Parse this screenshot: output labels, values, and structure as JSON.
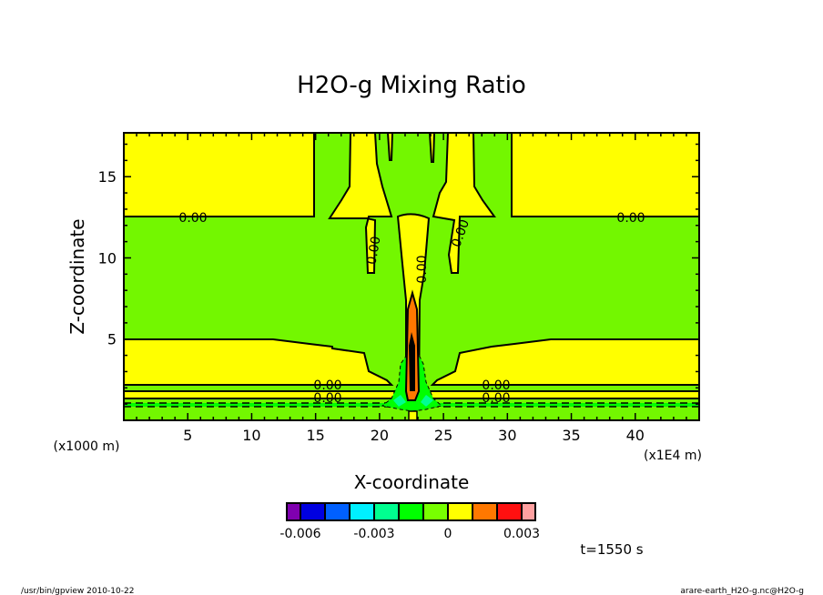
{
  "chart_data": {
    "type": "contour",
    "title": "H2O-g Mixing Ratio",
    "xlabel": "X-coordinate",
    "ylabel": "Z-coordinate",
    "x_units": "(x1E4 m)",
    "y_units": "(x1000 m)",
    "xlim": [
      0,
      45
    ],
    "ylim": [
      0,
      17.7
    ],
    "xticks": [
      5,
      10,
      15,
      20,
      25,
      30,
      35,
      40
    ],
    "yticks": [
      5,
      10,
      15
    ],
    "contour_label": "0.00",
    "colorbar": {
      "colors": [
        "#7f00b0",
        "#0000e0",
        "#0060ff",
        "#00f0ff",
        "#00ff90",
        "#00ff00",
        "#78ff00",
        "#ffff00",
        "#ff7800",
        "#ff1010",
        "#ffa0a0"
      ],
      "tick_labels": [
        "-0.006",
        "-0.003",
        "0",
        "0.003"
      ],
      "boundaries": [
        -0.006,
        -0.005,
        -0.004,
        -0.003,
        -0.002,
        -0.001,
        0,
        0.001,
        0.002,
        0.003
      ]
    },
    "time_label": "t=1550 s"
  },
  "footer": {
    "left": "/usr/bin/gpview  2010-10-22",
    "right": "arare-earth_H2O-g.nc@H2O-g"
  }
}
